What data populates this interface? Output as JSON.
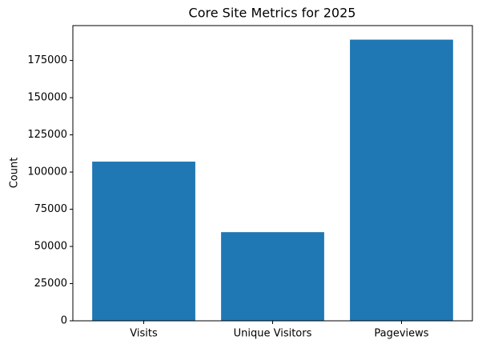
{
  "chart_data": {
    "type": "bar",
    "title": "Core Site Metrics for 2025",
    "y_label": "Count",
    "categories": [
      "Visits",
      "Unique Visitors",
      "Pageviews"
    ],
    "values": [
      107000,
      59600,
      189000
    ],
    "color": "#1f77b4",
    "ylim": [
      0,
      198450
    ],
    "yticks": [
      0,
      25000,
      50000,
      75000,
      100000,
      125000,
      150000,
      175000
    ]
  }
}
